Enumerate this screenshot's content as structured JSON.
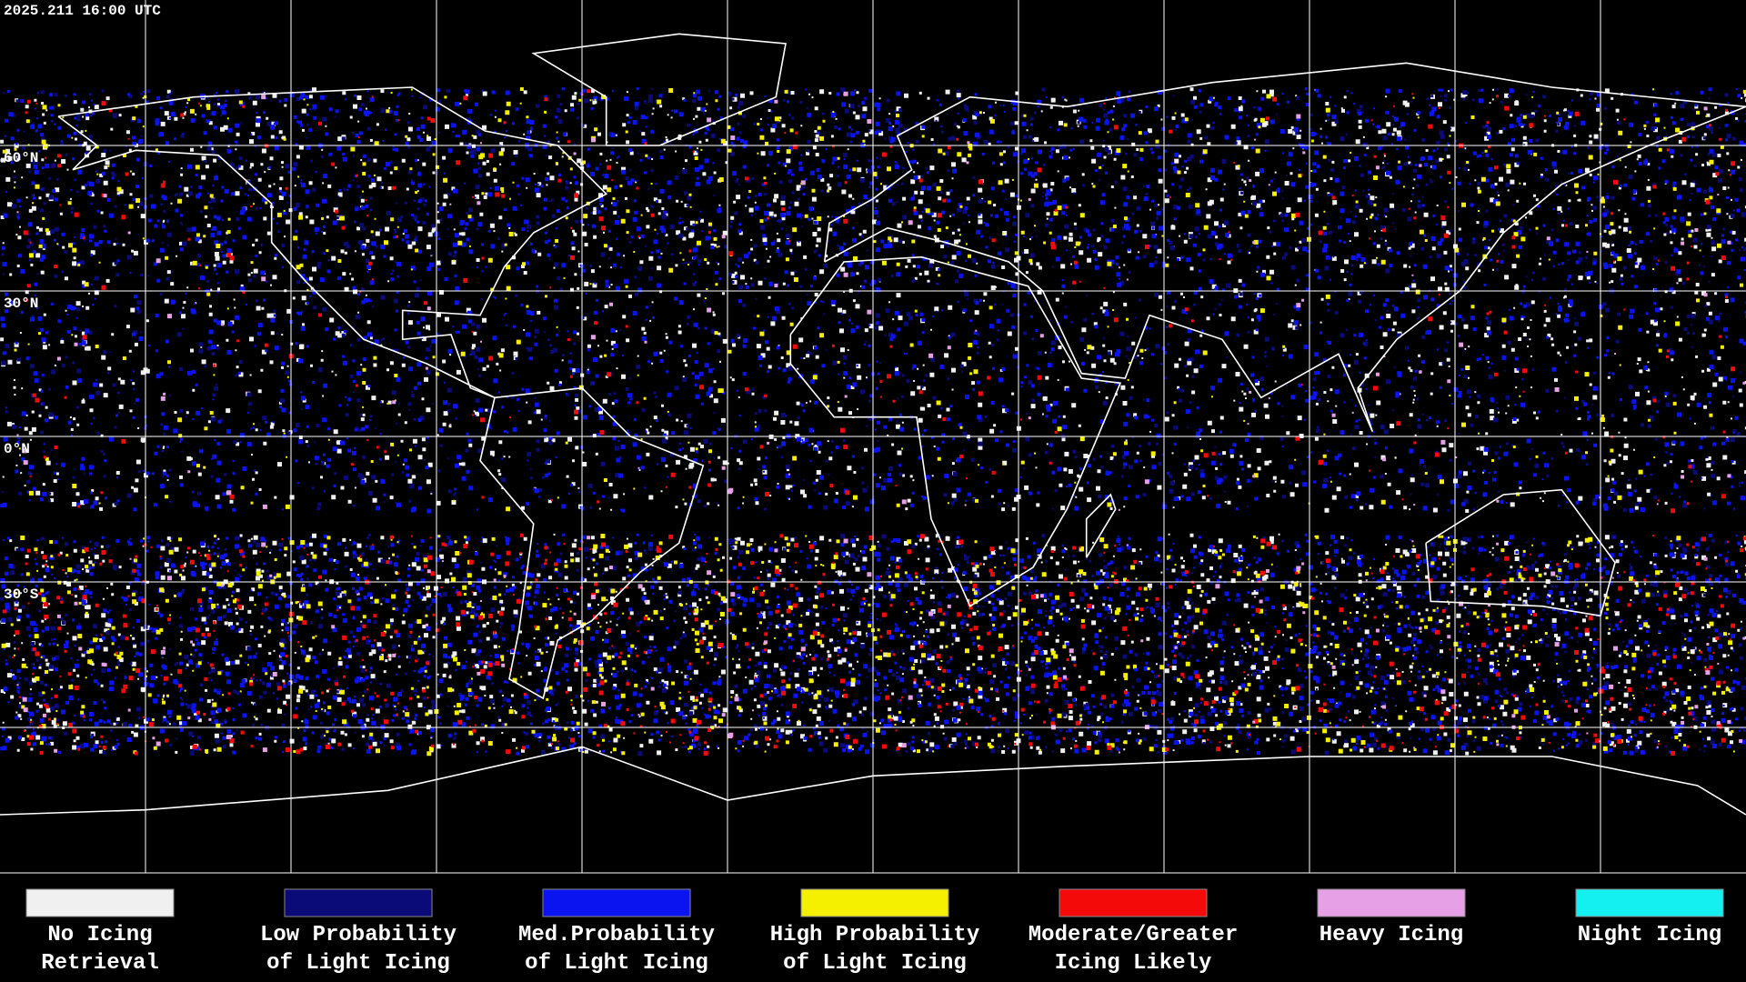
{
  "header": {
    "timestamp": "2025.211 16:00 UTC"
  },
  "map": {
    "latitude_labels": [
      "60°N",
      "30°N",
      "0°N",
      "30°S"
    ]
  },
  "legend": {
    "items": [
      {
        "color": "#f0f0f0",
        "lines": [
          "No Icing",
          "Retrieval"
        ]
      },
      {
        "color": "#0a0a78",
        "lines": [
          "Low Probability",
          "of Light Icing"
        ]
      },
      {
        "color": "#0a14f0",
        "lines": [
          "Med.Probability",
          "of Light Icing"
        ]
      },
      {
        "color": "#f5f000",
        "lines": [
          "High Probability",
          "of Light Icing"
        ]
      },
      {
        "color": "#f50a0a",
        "lines": [
          "Moderate/Greater",
          "Icing Likely"
        ]
      },
      {
        "color": "#e6a0e6",
        "lines": [
          "Heavy Icing"
        ]
      },
      {
        "color": "#14f0f0",
        "lines": [
          "Night Icing"
        ]
      }
    ]
  }
}
